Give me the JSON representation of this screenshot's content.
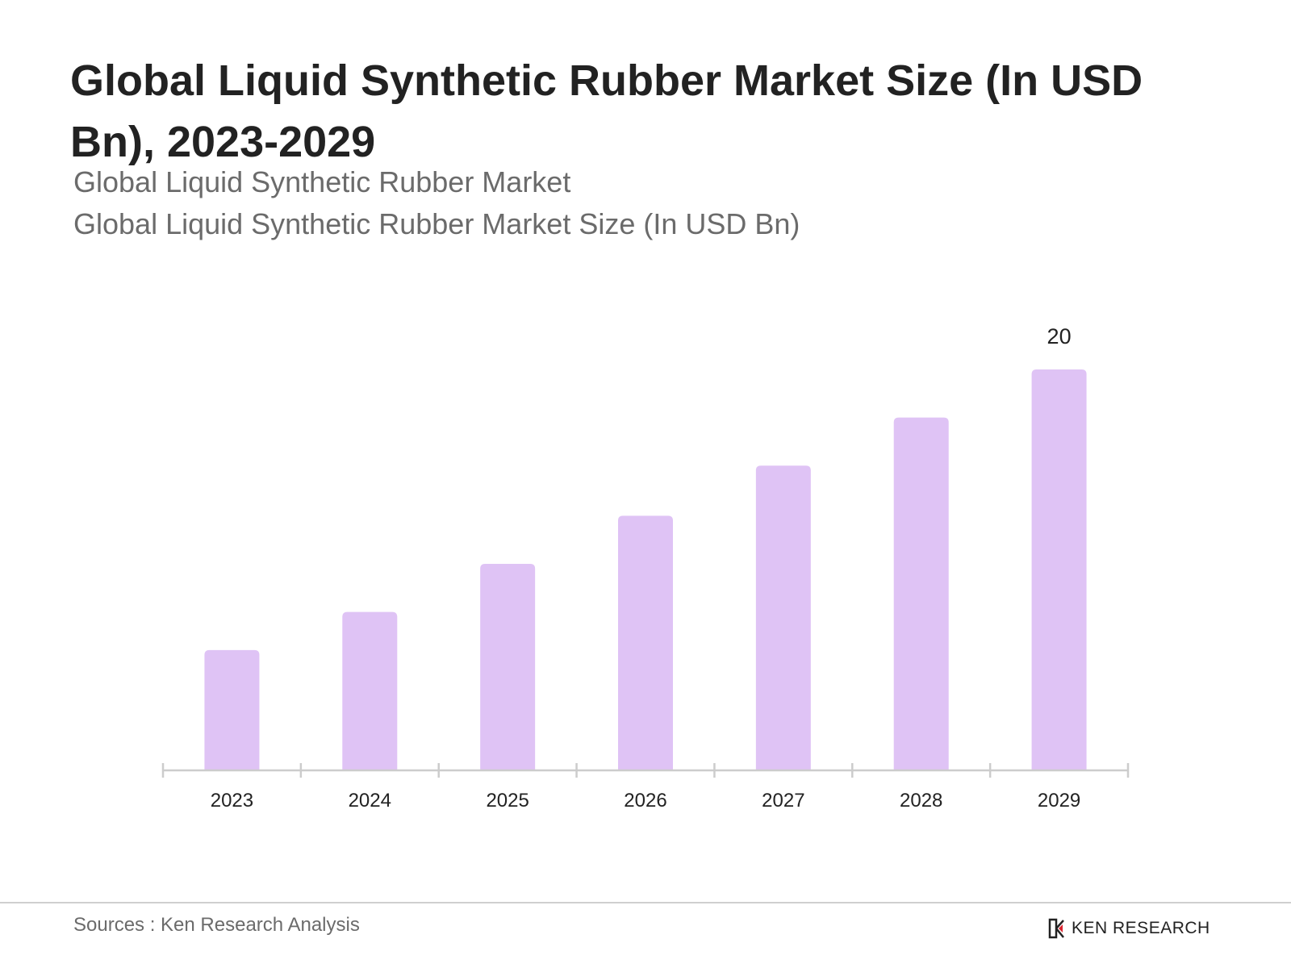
{
  "header": {
    "title": "Global Liquid Synthetic Rubber Market Size (In USD Bn), 2023-2029",
    "subtitle_1": "Global Liquid Synthetic Rubber Market",
    "subtitle_2": "Global Liquid Synthetic Rubber Market Size (In USD Bn)"
  },
  "chart_data": {
    "type": "bar",
    "categories": [
      "2023",
      "2024",
      "2025",
      "2026",
      "2027",
      "2028",
      "2029"
    ],
    "values": [
      6.0,
      7.9,
      10.3,
      12.7,
      15.2,
      17.6,
      20
    ],
    "data_labels": [
      "",
      "",
      "",
      "",
      "",
      "",
      "20"
    ],
    "ylim": [
      0,
      20
    ],
    "grid": false,
    "bar_color": "#dfc3f5",
    "axis_color": "#cccccc"
  },
  "footer": {
    "source": "Sources : Ken Research Analysis",
    "logo_text": "KEN RESEARCH"
  },
  "colors": {
    "title": "#222222",
    "subtitle": "#6b6b6b",
    "bar": "#dfc3f5"
  }
}
